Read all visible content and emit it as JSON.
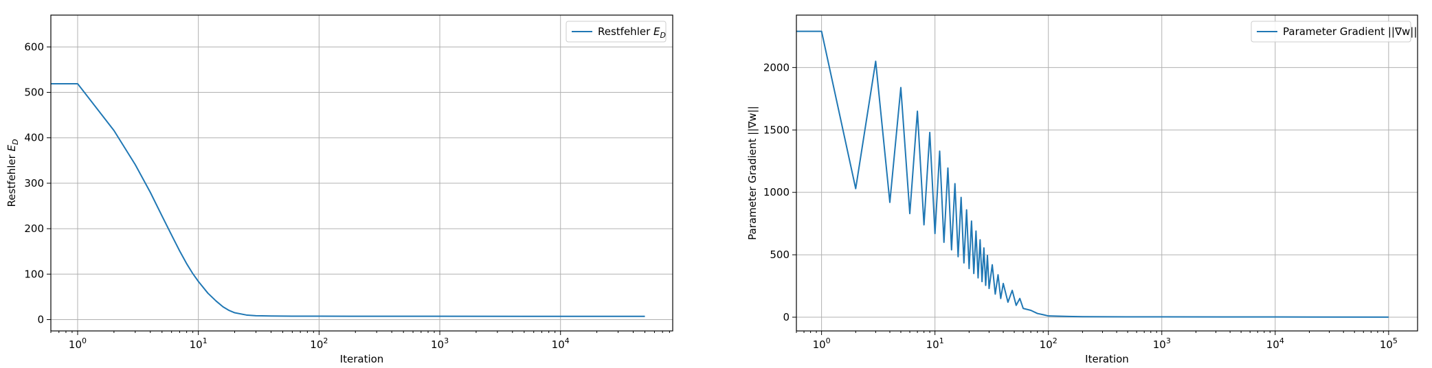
{
  "colors": {
    "line": "#1f77b4",
    "grid": "#b0b0b0",
    "frame": "#000000"
  },
  "chart_data": [
    {
      "type": "line",
      "title": "",
      "xlabel": "Iteration",
      "ylabel": "Restfehler E_D",
      "ylabel_parts": {
        "main": "Restfehler ",
        "base": "E",
        "sub": "D"
      },
      "xscale": "log",
      "xlim": [
        0.6,
        85000
      ],
      "ylim": [
        -25,
        670
      ],
      "xticks": [
        {
          "value": 1,
          "base": "10",
          "exp": "0"
        },
        {
          "value": 10,
          "base": "10",
          "exp": "1"
        },
        {
          "value": 100,
          "base": "10",
          "exp": "2"
        },
        {
          "value": 1000,
          "base": "10",
          "exp": "3"
        },
        {
          "value": 10000,
          "base": "10",
          "exp": "4"
        }
      ],
      "yticks": [
        {
          "value": 0,
          "label": "0"
        },
        {
          "value": 100,
          "label": "100"
        },
        {
          "value": 200,
          "label": "200"
        },
        {
          "value": 300,
          "label": "300"
        },
        {
          "value": 400,
          "label": "400"
        },
        {
          "value": 500,
          "label": "500"
        },
        {
          "value": 600,
          "label": "600"
        }
      ],
      "grid": true,
      "legend": {
        "position": "top-right",
        "label": "Restfehler E_D",
        "label_parts": {
          "main": "Restfehler ",
          "base": "E",
          "sub": "D"
        }
      },
      "series": [
        {
          "name": "Restfehler E_D",
          "x": [
            0,
            1,
            2,
            3,
            4,
            5,
            6,
            7,
            8,
            9,
            10,
            12,
            14,
            16,
            18,
            20,
            25,
            30,
            40,
            60,
            100,
            200,
            500,
            1000,
            5000,
            10000,
            20000,
            50000
          ],
          "y": [
            519,
            519,
            416,
            341,
            280,
            228,
            186,
            151,
            123,
            101,
            84,
            58,
            41,
            28,
            20,
            15,
            10,
            8.5,
            7.8,
            7.5,
            7.4,
            7.3,
            7.3,
            7.3,
            7.2,
            7.2,
            7.2,
            7.2
          ]
        }
      ]
    },
    {
      "type": "line",
      "title": "",
      "xlabel": "Iteration",
      "ylabel": "Parameter Gradient ||∇w||",
      "xscale": "log",
      "xlim": [
        0.6,
        180000
      ],
      "ylim": [
        -110,
        2420
      ],
      "xticks": [
        {
          "value": 1,
          "base": "10",
          "exp": "0"
        },
        {
          "value": 10,
          "base": "10",
          "exp": "1"
        },
        {
          "value": 100,
          "base": "10",
          "exp": "2"
        },
        {
          "value": 1000,
          "base": "10",
          "exp": "3"
        },
        {
          "value": 10000,
          "base": "10",
          "exp": "4"
        },
        {
          "value": 100000,
          "base": "10",
          "exp": "5"
        }
      ],
      "yticks": [
        {
          "value": 0,
          "label": "0"
        },
        {
          "value": 500,
          "label": "500"
        },
        {
          "value": 1000,
          "label": "1000"
        },
        {
          "value": 1500,
          "label": "1500"
        },
        {
          "value": 2000,
          "label": "2000"
        }
      ],
      "grid": true,
      "legend": {
        "position": "top-right",
        "label": "Parameter Gradient ||∇w||"
      },
      "series": [
        {
          "name": "Parameter Gradient ||∇w||",
          "x": [
            0,
            1,
            2,
            3,
            4,
            5,
            6,
            7,
            8,
            9,
            10,
            11,
            12,
            13,
            14,
            15,
            16,
            17,
            18,
            19,
            20,
            21,
            22,
            23,
            24,
            25,
            26,
            27,
            28,
            29,
            30,
            32,
            34,
            36,
            38,
            40,
            44,
            48,
            52,
            56,
            60,
            70,
            80,
            90,
            100,
            150,
            200,
            500,
            1000,
            5000,
            10000,
            100000
          ],
          "y": [
            2290,
            2290,
            1030,
            2050,
            920,
            1840,
            830,
            1650,
            740,
            1480,
            670,
            1330,
            600,
            1195,
            540,
            1070,
            485,
            960,
            435,
            860,
            390,
            770,
            350,
            690,
            315,
            620,
            285,
            555,
            255,
            495,
            230,
            420,
            185,
            340,
            150,
            270,
            120,
            215,
            95,
            150,
            70,
            55,
            30,
            20,
            10,
            6,
            4,
            3,
            3,
            2,
            2,
            1
          ]
        }
      ]
    }
  ]
}
